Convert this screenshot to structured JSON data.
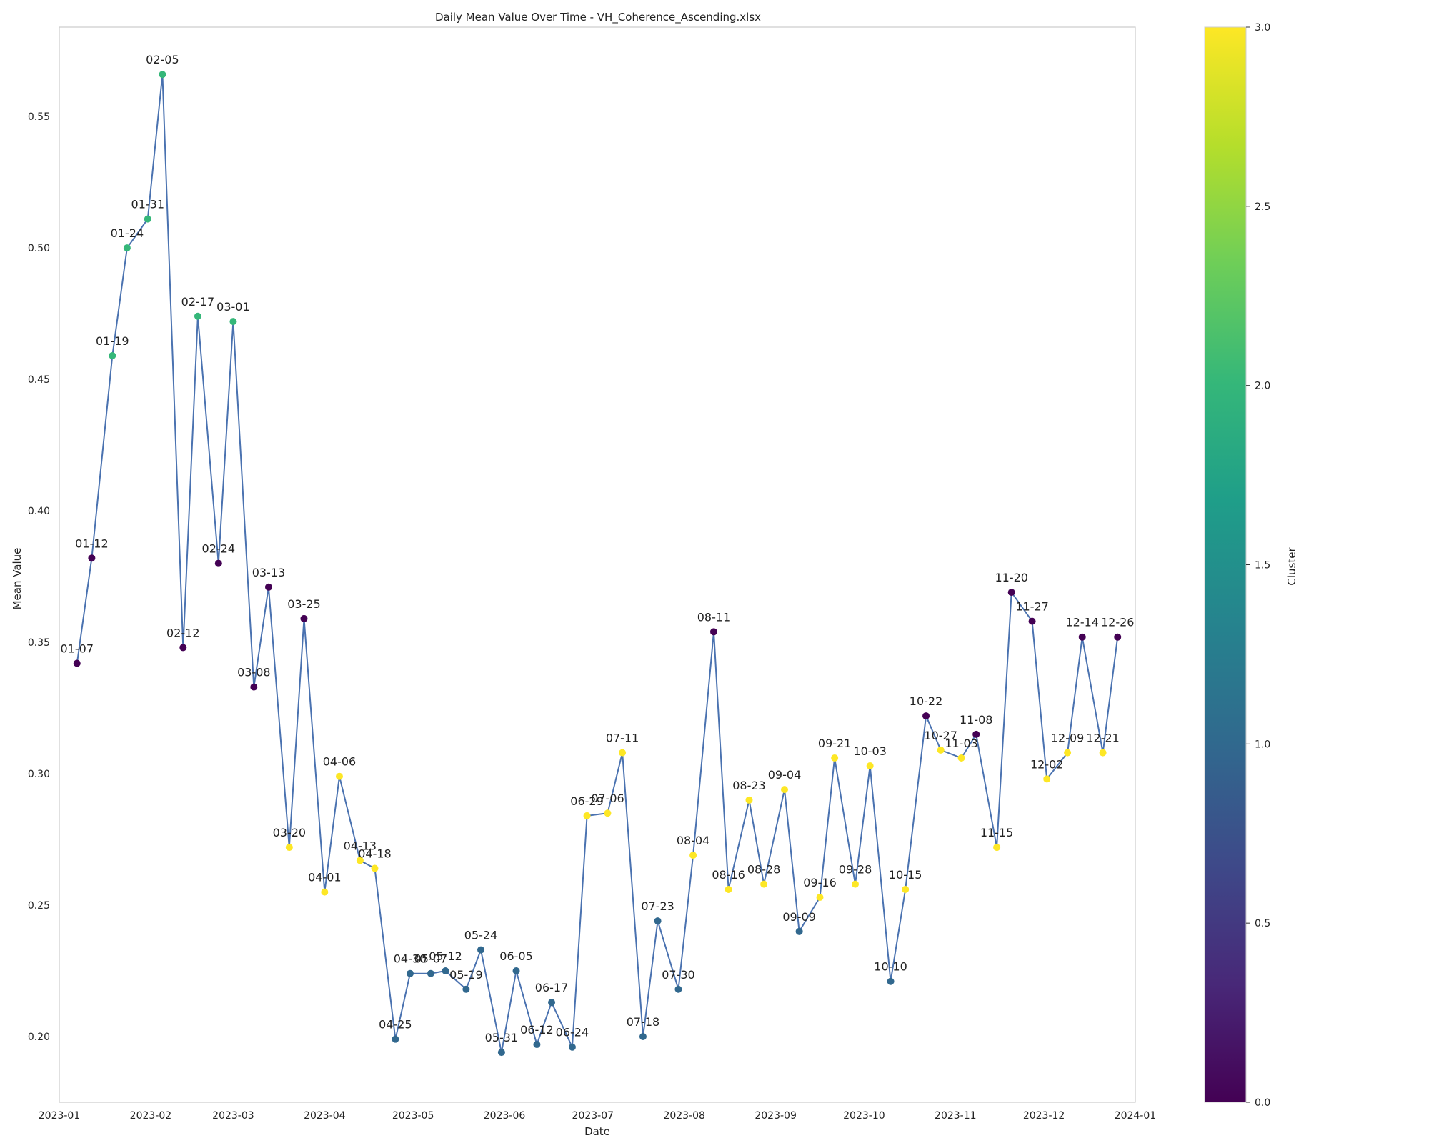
{
  "chart_data": {
    "type": "line",
    "title": "Daily Mean Value Over Time - VH_Coherence_Ascending.xlsx",
    "xlabel": "Date",
    "ylabel": "Mean Value",
    "xlim": [
      "2023-01-01",
      "2024-01-01"
    ],
    "ylim": [
      0.175,
      0.584
    ],
    "yticks": [
      0.2,
      0.25,
      0.3,
      0.35,
      0.4,
      0.45,
      0.5,
      0.55
    ],
    "ytick_labels": [
      "0.20",
      "0.25",
      "0.30",
      "0.35",
      "0.40",
      "0.45",
      "0.50",
      "0.55"
    ],
    "xticks": [
      "2023-01-01",
      "2023-02-01",
      "2023-03-01",
      "2023-04-01",
      "2023-05-01",
      "2023-06-01",
      "2023-07-01",
      "2023-08-01",
      "2023-09-01",
      "2023-10-01",
      "2023-11-01",
      "2023-12-01",
      "2024-01-01"
    ],
    "xtick_labels": [
      "2023-01",
      "2023-02",
      "2023-03",
      "2023-04",
      "2023-05",
      "2023-06",
      "2023-07",
      "2023-08",
      "2023-09",
      "2023-10",
      "2023-11",
      "2023-12",
      "2024-01"
    ],
    "grid": false,
    "line_color": "#4a72b0",
    "colorbar": {
      "label": "Cluster",
      "range": [
        0,
        3
      ],
      "ticks": [
        0.0,
        0.5,
        1.0,
        1.5,
        2.0,
        2.5,
        3.0
      ],
      "tick_labels": [
        "0.0",
        "0.5",
        "1.0",
        "1.5",
        "2.0",
        "2.5",
        "3.0"
      ],
      "colormap": "viridis"
    },
    "points": [
      {
        "date": "2023-01-07",
        "label": "01-07",
        "y": 0.342,
        "cluster": 0
      },
      {
        "date": "2023-01-12",
        "label": "01-12",
        "y": 0.382,
        "cluster": 0
      },
      {
        "date": "2023-01-19",
        "label": "01-19",
        "y": 0.459,
        "cluster": 2
      },
      {
        "date": "2023-01-24",
        "label": "01-24",
        "y": 0.5,
        "cluster": 2
      },
      {
        "date": "2023-01-31",
        "label": "01-31",
        "y": 0.511,
        "cluster": 2
      },
      {
        "date": "2023-02-05",
        "label": "02-05",
        "y": 0.566,
        "cluster": 2
      },
      {
        "date": "2023-02-12",
        "label": "02-12",
        "y": 0.348,
        "cluster": 0
      },
      {
        "date": "2023-02-17",
        "label": "02-17",
        "y": 0.474,
        "cluster": 2
      },
      {
        "date": "2023-02-24",
        "label": "02-24",
        "y": 0.38,
        "cluster": 0
      },
      {
        "date": "2023-03-01",
        "label": "03-01",
        "y": 0.472,
        "cluster": 2
      },
      {
        "date": "2023-03-08",
        "label": "03-08",
        "y": 0.333,
        "cluster": 0
      },
      {
        "date": "2023-03-13",
        "label": "03-13",
        "y": 0.371,
        "cluster": 0
      },
      {
        "date": "2023-03-20",
        "label": "03-20",
        "y": 0.272,
        "cluster": 3
      },
      {
        "date": "2023-03-25",
        "label": "03-25",
        "y": 0.359,
        "cluster": 0
      },
      {
        "date": "2023-04-01",
        "label": "04-01",
        "y": 0.255,
        "cluster": 3
      },
      {
        "date": "2023-04-06",
        "label": "04-06",
        "y": 0.299,
        "cluster": 3
      },
      {
        "date": "2023-04-13",
        "label": "04-13",
        "y": 0.267,
        "cluster": 3
      },
      {
        "date": "2023-04-18",
        "label": "04-18",
        "y": 0.264,
        "cluster": 3
      },
      {
        "date": "2023-04-25",
        "label": "04-25",
        "y": 0.199,
        "cluster": 1
      },
      {
        "date": "2023-04-30",
        "label": "04-30",
        "y": 0.224,
        "cluster": 1
      },
      {
        "date": "2023-05-07",
        "label": "05-07",
        "y": 0.224,
        "cluster": 1
      },
      {
        "date": "2023-05-12",
        "label": "05-12",
        "y": 0.225,
        "cluster": 1
      },
      {
        "date": "2023-05-19",
        "label": "05-19",
        "y": 0.218,
        "cluster": 1
      },
      {
        "date": "2023-05-24",
        "label": "05-24",
        "y": 0.233,
        "cluster": 1
      },
      {
        "date": "2023-05-31",
        "label": "05-31",
        "y": 0.194,
        "cluster": 1
      },
      {
        "date": "2023-06-05",
        "label": "06-05",
        "y": 0.225,
        "cluster": 1
      },
      {
        "date": "2023-06-12",
        "label": "06-12",
        "y": 0.197,
        "cluster": 1
      },
      {
        "date": "2023-06-17",
        "label": "06-17",
        "y": 0.213,
        "cluster": 1
      },
      {
        "date": "2023-06-24",
        "label": "06-24",
        "y": 0.196,
        "cluster": 1
      },
      {
        "date": "2023-06-29",
        "label": "06-29",
        "y": 0.284,
        "cluster": 3
      },
      {
        "date": "2023-07-06",
        "label": "07-06",
        "y": 0.285,
        "cluster": 3
      },
      {
        "date": "2023-07-11",
        "label": "07-11",
        "y": 0.308,
        "cluster": 3
      },
      {
        "date": "2023-07-18",
        "label": "07-18",
        "y": 0.2,
        "cluster": 1
      },
      {
        "date": "2023-07-23",
        "label": "07-23",
        "y": 0.244,
        "cluster": 1
      },
      {
        "date": "2023-07-30",
        "label": "07-30",
        "y": 0.218,
        "cluster": 1
      },
      {
        "date": "2023-08-04",
        "label": "08-04",
        "y": 0.269,
        "cluster": 3
      },
      {
        "date": "2023-08-11",
        "label": "08-11",
        "y": 0.354,
        "cluster": 0
      },
      {
        "date": "2023-08-16",
        "label": "08-16",
        "y": 0.256,
        "cluster": 3
      },
      {
        "date": "2023-08-23",
        "label": "08-23",
        "y": 0.29,
        "cluster": 3
      },
      {
        "date": "2023-08-28",
        "label": "08-28",
        "y": 0.258,
        "cluster": 3
      },
      {
        "date": "2023-09-04",
        "label": "09-04",
        "y": 0.294,
        "cluster": 3
      },
      {
        "date": "2023-09-09",
        "label": "09-09",
        "y": 0.24,
        "cluster": 1
      },
      {
        "date": "2023-09-16",
        "label": "09-16",
        "y": 0.253,
        "cluster": 3
      },
      {
        "date": "2023-09-21",
        "label": "09-21",
        "y": 0.306,
        "cluster": 3
      },
      {
        "date": "2023-09-28",
        "label": "09-28",
        "y": 0.258,
        "cluster": 3
      },
      {
        "date": "2023-10-03",
        "label": "10-03",
        "y": 0.303,
        "cluster": 3
      },
      {
        "date": "2023-10-10",
        "label": "10-10",
        "y": 0.221,
        "cluster": 1
      },
      {
        "date": "2023-10-15",
        "label": "10-15",
        "y": 0.256,
        "cluster": 3
      },
      {
        "date": "2023-10-22",
        "label": "10-22",
        "y": 0.322,
        "cluster": 0
      },
      {
        "date": "2023-10-27",
        "label": "10-27",
        "y": 0.309,
        "cluster": 3
      },
      {
        "date": "2023-11-03",
        "label": "11-03",
        "y": 0.306,
        "cluster": 3
      },
      {
        "date": "2023-11-08",
        "label": "11-08",
        "y": 0.315,
        "cluster": 0
      },
      {
        "date": "2023-11-15",
        "label": "11-15",
        "y": 0.272,
        "cluster": 3
      },
      {
        "date": "2023-11-20",
        "label": "11-20",
        "y": 0.369,
        "cluster": 0
      },
      {
        "date": "2023-11-27",
        "label": "11-27",
        "y": 0.358,
        "cluster": 0
      },
      {
        "date": "2023-12-02",
        "label": "12-02",
        "y": 0.298,
        "cluster": 3
      },
      {
        "date": "2023-12-09",
        "label": "12-09",
        "y": 0.308,
        "cluster": 3
      },
      {
        "date": "2023-12-14",
        "label": "12-14",
        "y": 0.352,
        "cluster": 0
      },
      {
        "date": "2023-12-21",
        "label": "12-21",
        "y": 0.308,
        "cluster": 3
      },
      {
        "date": "2023-12-26",
        "label": "12-26",
        "y": 0.352,
        "cluster": 0
      }
    ]
  }
}
